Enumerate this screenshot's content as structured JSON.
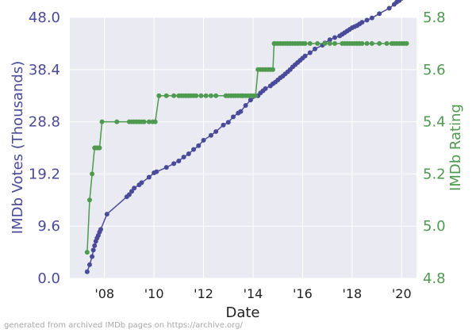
{
  "chart_data": {
    "type": "line",
    "xlabel": "Date",
    "ylabel_left": "IMDb Votes (Thousands)",
    "ylabel_right": "IMDb Rating",
    "ylim_left": [
      0,
      48
    ],
    "ylim_right": [
      4.8,
      5.8
    ],
    "xlim": [
      2006.6,
      2020.6
    ],
    "yticks_left": [
      "0.0",
      "9.6",
      "19.2",
      "28.8",
      "38.4",
      "48.0"
    ],
    "yticks_right": [
      "4.8",
      "5.0",
      "5.2",
      "5.4",
      "5.6",
      "5.8"
    ],
    "xticks": [
      {
        "value": 2008,
        "label": "'08"
      },
      {
        "value": 2010,
        "label": "'10"
      },
      {
        "value": 2012,
        "label": "'12"
      },
      {
        "value": 2014,
        "label": "'14"
      },
      {
        "value": 2016,
        "label": "'16"
      },
      {
        "value": 2018,
        "label": "'18"
      },
      {
        "value": 2020,
        "label": "'20"
      }
    ],
    "grid": true,
    "colors": {
      "votes": "#4a4a9a",
      "rating": "#4e9a4e",
      "plot_bg": "#eaeaf2",
      "grid": "#ffffff"
    },
    "series": [
      {
        "key": "votes",
        "axis": "left",
        "x": [
          2007.3,
          2007.4,
          2007.5,
          2007.55,
          2007.6,
          2007.65,
          2007.7,
          2007.75,
          2007.8,
          2007.85,
          2008.1,
          2008.9,
          2009.0,
          2009.1,
          2009.2,
          2009.4,
          2009.5,
          2009.8,
          2010.0,
          2010.1,
          2010.5,
          2010.8,
          2011.0,
          2011.2,
          2011.4,
          2011.6,
          2011.8,
          2012.0,
          2012.3,
          2012.5,
          2012.8,
          2013.0,
          2013.2,
          2013.4,
          2013.5,
          2013.7,
          2013.9,
          2014.2,
          2014.3,
          2014.4,
          2014.5,
          2014.7,
          2014.8,
          2014.9,
          2015.0,
          2015.1,
          2015.2,
          2015.3,
          2015.4,
          2015.5,
          2015.6,
          2015.7,
          2015.8,
          2015.9,
          2016.0,
          2016.1,
          2016.3,
          2016.5,
          2016.8,
          2016.9,
          2017.1,
          2017.3,
          2017.5,
          2017.6,
          2017.7,
          2017.8,
          2017.9,
          2018.0,
          2018.1,
          2018.2,
          2018.3,
          2018.4,
          2018.6,
          2018.8,
          2019.1,
          2019.5,
          2019.7,
          2019.8,
          2019.9,
          2020.0,
          2020.1,
          2020.2
        ],
        "y": [
          1.2,
          2.5,
          4.0,
          5.2,
          6.0,
          6.8,
          7.4,
          7.9,
          8.5,
          9.0,
          11.8,
          15.0,
          15.4,
          16.0,
          16.6,
          17.2,
          17.6,
          18.6,
          19.4,
          19.6,
          20.4,
          21.1,
          21.6,
          22.3,
          22.9,
          23.7,
          24.4,
          25.4,
          26.3,
          27.0,
          28.2,
          28.7,
          29.7,
          30.4,
          30.7,
          31.8,
          32.8,
          33.6,
          34.1,
          34.5,
          34.9,
          35.4,
          35.8,
          36.1,
          36.5,
          36.9,
          37.2,
          37.6,
          38.0,
          38.4,
          38.9,
          39.3,
          39.7,
          40.1,
          40.5,
          40.9,
          41.5,
          42.2,
          42.9,
          43.3,
          43.9,
          44.3,
          44.6,
          44.9,
          45.2,
          45.5,
          45.8,
          46.1,
          46.3,
          46.5,
          46.8,
          47.1,
          47.5,
          47.9,
          48.7,
          49.7,
          50.4,
          50.8,
          51.1,
          51.5,
          51.8,
          52.2
        ]
      },
      {
        "key": "rating",
        "axis": "right",
        "x": [
          2007.3,
          2007.4,
          2007.5,
          2007.6,
          2007.65,
          2007.7,
          2007.75,
          2007.8,
          2007.9,
          2008.5,
          2009.0,
          2009.1,
          2009.2,
          2009.3,
          2009.4,
          2009.5,
          2009.6,
          2009.8,
          2009.95,
          2010.05,
          2010.2,
          2010.5,
          2010.8,
          2011.0,
          2011.1,
          2011.2,
          2011.3,
          2011.4,
          2011.5,
          2011.6,
          2011.7,
          2011.9,
          2012.1,
          2012.3,
          2012.5,
          2012.9,
          2013.0,
          2013.1,
          2013.2,
          2013.3,
          2013.4,
          2013.5,
          2013.55,
          2013.6,
          2013.7,
          2013.8,
          2013.9,
          2014.0,
          2014.1,
          2014.2,
          2014.3,
          2014.4,
          2014.5,
          2014.6,
          2014.7,
          2014.8,
          2014.85,
          2014.9,
          2015.0,
          2015.1,
          2015.2,
          2015.3,
          2015.4,
          2015.5,
          2015.6,
          2015.7,
          2015.8,
          2015.9,
          2016.0,
          2016.1,
          2016.3,
          2016.6,
          2016.9,
          2017.1,
          2017.3,
          2017.6,
          2017.7,
          2017.8,
          2017.9,
          2018.0,
          2018.1,
          2018.2,
          2018.3,
          2018.4,
          2018.6,
          2018.8,
          2019.1,
          2019.4,
          2019.6,
          2019.7,
          2019.8,
          2019.9,
          2020.0,
          2020.1,
          2020.2
        ],
        "y": [
          4.9,
          5.1,
          5.2,
          5.3,
          5.3,
          5.3,
          5.3,
          5.3,
          5.4,
          5.4,
          5.4,
          5.4,
          5.4,
          5.4,
          5.4,
          5.4,
          5.4,
          5.4,
          5.4,
          5.4,
          5.5,
          5.5,
          5.5,
          5.5,
          5.5,
          5.5,
          5.5,
          5.5,
          5.5,
          5.5,
          5.5,
          5.5,
          5.5,
          5.5,
          5.5,
          5.5,
          5.5,
          5.5,
          5.5,
          5.5,
          5.5,
          5.5,
          5.5,
          5.5,
          5.5,
          5.5,
          5.5,
          5.5,
          5.5,
          5.6,
          5.6,
          5.6,
          5.6,
          5.6,
          5.6,
          5.6,
          5.7,
          5.7,
          5.7,
          5.7,
          5.7,
          5.7,
          5.7,
          5.7,
          5.7,
          5.7,
          5.7,
          5.7,
          5.7,
          5.7,
          5.7,
          5.7,
          5.7,
          5.7,
          5.7,
          5.7,
          5.7,
          5.7,
          5.7,
          5.7,
          5.7,
          5.7,
          5.7,
          5.7,
          5.7,
          5.7,
          5.7,
          5.7,
          5.7,
          5.7,
          5.7,
          5.7,
          5.7,
          5.7,
          5.7
        ]
      }
    ]
  },
  "footer": {
    "credit": "generated from archived IMDb pages on https://archive.org/"
  }
}
